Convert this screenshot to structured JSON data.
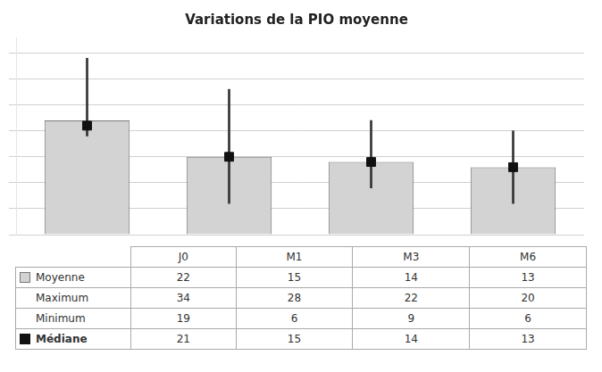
{
  "chart_data": {
    "type": "bar",
    "title": "Variations de la PIO moyenne",
    "categories": [
      "J0",
      "M1",
      "M3",
      "M6"
    ],
    "series": [
      {
        "name": "Moyenne",
        "type": "bar",
        "color": "#d3d3d3",
        "values": [
          22,
          15,
          14,
          13
        ]
      },
      {
        "name": "Maximum",
        "type": "errorbar",
        "color": "#333333",
        "values": [
          34,
          28,
          22,
          20
        ]
      },
      {
        "name": "Minimum",
        "type": "errorbar",
        "color": "#333333",
        "values": [
          19,
          6,
          9,
          6
        ]
      },
      {
        "name": "Médiane",
        "type": "scatter",
        "marker": "square",
        "color": "#111111",
        "values": [
          21,
          15,
          14,
          13
        ]
      }
    ],
    "ylim": [
      0,
      38
    ],
    "yticks": [
      0,
      5,
      10,
      15,
      20,
      25,
      30,
      35
    ],
    "grid": true,
    "tick_labels": false
  }
}
